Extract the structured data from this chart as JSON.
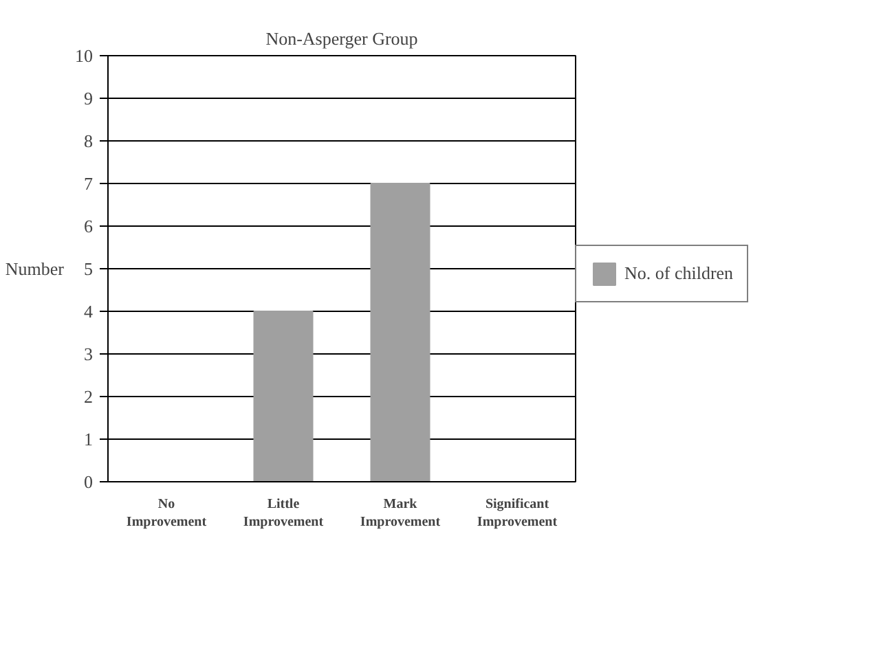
{
  "chart_data": {
    "type": "bar",
    "title": "Non-Asperger Group",
    "ylabel": "Number",
    "categories": [
      "No Improvement",
      "Little Improvement",
      "Mark Improvement",
      "Significant Improvement"
    ],
    "series": [
      {
        "name": "No. of children",
        "color": "#a0a0a0",
        "values": [
          0,
          4,
          7,
          0
        ]
      }
    ],
    "ylim": [
      0,
      10
    ],
    "yticks": [
      0,
      1,
      2,
      3,
      4,
      5,
      6,
      7,
      8,
      9,
      10
    ],
    "grid": "y",
    "legend": "right"
  }
}
